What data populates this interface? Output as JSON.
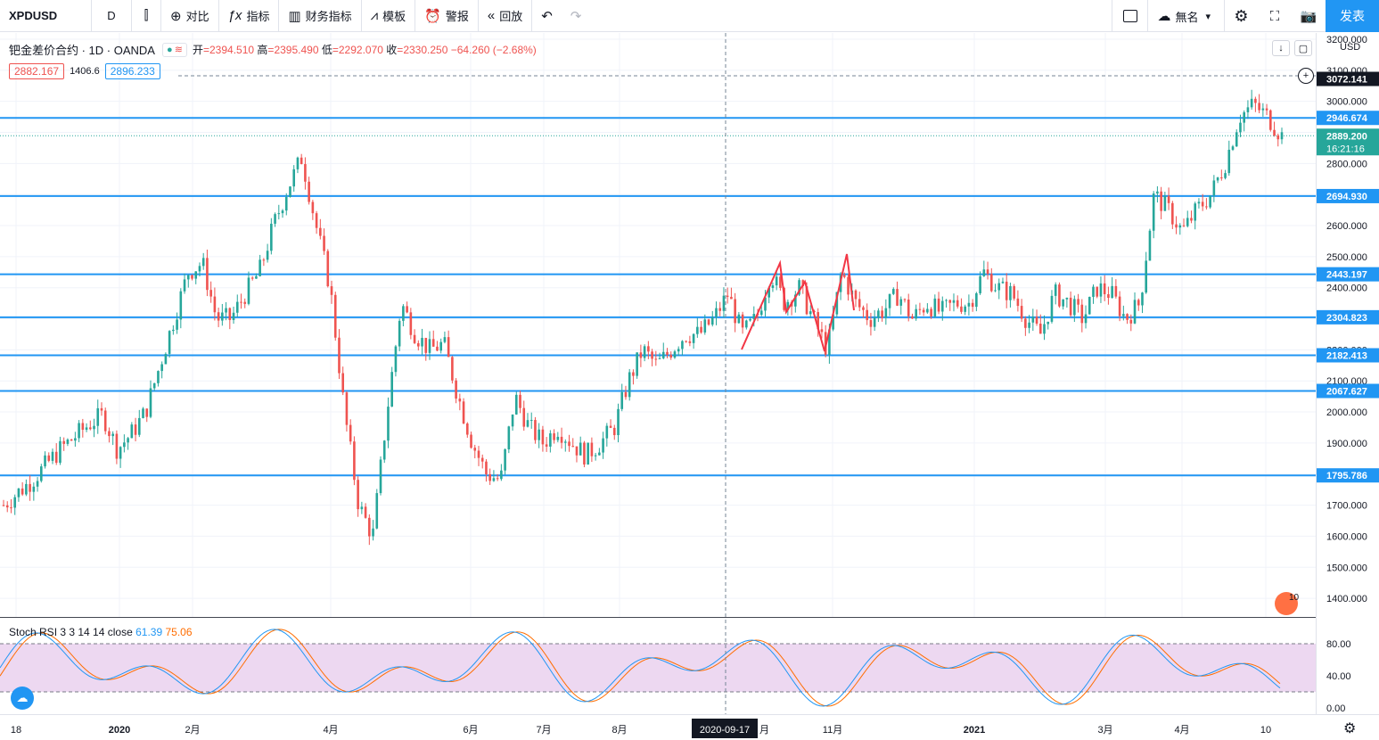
{
  "toolbar": {
    "symbol": "XPDUSD",
    "interval": "D",
    "compare_label": "对比",
    "indicators_label": "指标",
    "financials_label": "财务指标",
    "templates_label": "模板",
    "alert_label": "警报",
    "replay_label": "回放",
    "layout_name": "無名",
    "publish_label": "发表"
  },
  "legend": {
    "title": "钯金差价合约 · 1D · OANDA",
    "open_label": "开",
    "open": "2394.510",
    "high_label": "高",
    "high": "2395.490",
    "low_label": "低",
    "low": "2292.070",
    "close_label": "收",
    "close": "2330.250",
    "change": "−64.260 (−2.68%)",
    "bid": "2882.167",
    "spread": "1406.6",
    "ask": "2896.233"
  },
  "stoch": {
    "label": "Stoch RSI 3 3 14 14 close",
    "k": "61.39",
    "d": "75.06",
    "scale": [
      "80.00",
      "40.00",
      "0.00"
    ]
  },
  "axis": {
    "currency": "USD",
    "price_ticks": [
      "3200.000",
      "3100.000",
      "3000.000",
      "2900.000",
      "2800.000",
      "2700.000",
      "2600.000",
      "2500.000",
      "2400.000",
      "2300.000",
      "2200.000",
      "2100.000",
      "2000.000",
      "1900.000",
      "1800.000",
      "1700.000",
      "1600.000",
      "1500.000",
      "1400.000"
    ],
    "time_ticks": [
      "18",
      "2020",
      "2月",
      "4月",
      "6月",
      "7月",
      "8月",
      "10月",
      "11月",
      "2021",
      "3月",
      "4月",
      "10"
    ],
    "crosshair_date": "2020-09-17",
    "current_price": "2889.200",
    "countdown": "16:21:16",
    "crosshair_price": "3072.141",
    "events_badge": "10"
  },
  "chart_data": {
    "type": "candlestick",
    "symbol": "XPDUSD",
    "interval": "1D",
    "ylim": [
      1340,
      3220
    ],
    "horizontal_levels": [
      2946.674,
      2694.93,
      2443.197,
      2304.823,
      2182.413,
      2067.627,
      1795.786
    ],
    "current_price": 2889.2,
    "crosshair_price": 3072.141,
    "closes_approx": [
      1700,
      1740,
      1780,
      1830,
      1880,
      1920,
      1960,
      1990,
      1880,
      1930,
      2000,
      2150,
      2300,
      2450,
      2480,
      2300,
      2300,
      2380,
      2450,
      2600,
      2720,
      2820,
      2600,
      2400,
      2000,
      1700,
      1600,
      2000,
      2350,
      2250,
      2200,
      2220,
      2050,
      1900,
      1800,
      1780,
      2050,
      1950,
      1900,
      1950,
      1900,
      1860,
      1900,
      1950,
      2100,
      2200,
      2150,
      2200,
      2250,
      2250,
      2300,
      2380,
      2250,
      2300,
      2450,
      2350,
      2400,
      2300,
      2200,
      2450,
      2350,
      2300,
      2330,
      2380,
      2300,
      2350,
      2320,
      2350,
      2350,
      2450,
      2400,
      2380,
      2300,
      2250,
      2380,
      2350,
      2300,
      2400,
      2380,
      2300,
      2350,
      2700,
      2650,
      2580,
      2650,
      2700,
      2800,
      2950,
      2990,
      2950,
      2889
    ]
  }
}
